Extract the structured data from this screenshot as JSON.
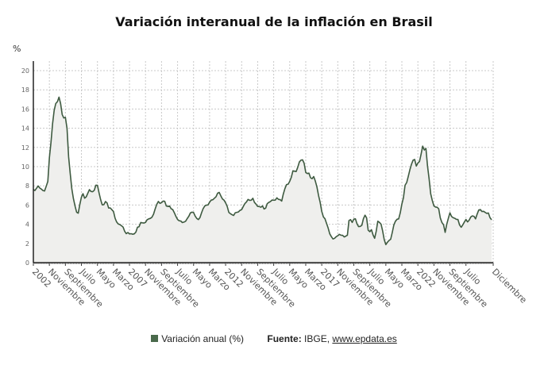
{
  "chart_data": {
    "type": "area",
    "title": "Variación interanual de la inflación en Brasil",
    "ylabel": "%",
    "xlabel": "",
    "ylim": [
      0,
      20
    ],
    "yticks": [
      0,
      2,
      4,
      6,
      8,
      10,
      12,
      14,
      16,
      18,
      20
    ],
    "grid": true,
    "legend_placement": "bottom",
    "x_range": [
      "2002-01",
      "2025-12"
    ],
    "xticks": [
      {
        "label": "2002",
        "date": "2002-01"
      },
      {
        "label": "Noviembre",
        "date": "2002-11"
      },
      {
        "label": "Septiembre",
        "date": "2003-09"
      },
      {
        "label": "Julio",
        "date": "2004-07"
      },
      {
        "label": "Mayo",
        "date": "2005-05"
      },
      {
        "label": "Marzo",
        "date": "2006-03"
      },
      {
        "label": "2007",
        "date": "2007-01"
      },
      {
        "label": "Noviembre",
        "date": "2007-11"
      },
      {
        "label": "Septiembre",
        "date": "2008-09"
      },
      {
        "label": "Julio",
        "date": "2009-07"
      },
      {
        "label": "Mayo",
        "date": "2010-05"
      },
      {
        "label": "Marzo",
        "date": "2011-03"
      },
      {
        "label": "2012",
        "date": "2012-01"
      },
      {
        "label": "Noviembre",
        "date": "2012-11"
      },
      {
        "label": "Septiembre",
        "date": "2013-09"
      },
      {
        "label": "Julio",
        "date": "2014-07"
      },
      {
        "label": "Mayo",
        "date": "2015-05"
      },
      {
        "label": "Marzo",
        "date": "2016-03"
      },
      {
        "label": "2017",
        "date": "2017-01"
      },
      {
        "label": "Noviembre",
        "date": "2017-11"
      },
      {
        "label": "Septiembre",
        "date": "2018-09"
      },
      {
        "label": "Julio",
        "date": "2019-07"
      },
      {
        "label": "Mayo",
        "date": "2020-05"
      },
      {
        "label": "Marzo",
        "date": "2021-03"
      },
      {
        "label": "2022",
        "date": "2022-01"
      },
      {
        "label": "Noviembre",
        "date": "2022-11"
      },
      {
        "label": "Septiembre",
        "date": "2023-09"
      },
      {
        "label": "Julio",
        "date": "2024-07"
      },
      {
        "label": "Diciembre",
        "date": "2025-12"
      }
    ],
    "series": [
      {
        "name": "Variación anual (%)",
        "color": "#3e5a40",
        "fill": "#efefed",
        "values_by_year": {
          "2002": [
            7.62,
            7.51,
            7.75,
            7.98,
            7.77,
            7.66,
            7.51,
            7.46,
            7.93,
            8.45,
            10.93,
            12.53
          ],
          "2003": [
            14.47,
            15.85,
            16.57,
            16.77,
            17.24,
            16.57,
            15.43,
            15.07,
            15.14,
            13.98,
            11.02,
            9.3
          ],
          "2004": [
            7.71,
            6.69,
            5.89,
            5.26,
            5.15,
            6.06,
            6.81,
            7.18,
            6.71,
            6.86,
            7.24,
            7.6
          ],
          "2005": [
            7.41,
            7.39,
            7.54,
            8.07,
            8.05,
            7.27,
            6.57,
            6.02,
            6.04,
            6.36,
            6.22,
            5.69
          ],
          "2006": [
            5.7,
            5.51,
            5.32,
            4.63,
            4.23,
            4.03,
            3.97,
            3.84,
            3.7,
            3.26,
            3.02,
            3.14
          ],
          "2007": [
            2.99,
            3.02,
            2.96,
            3.0,
            3.18,
            3.69,
            3.74,
            4.18,
            4.15,
            4.12,
            4.19,
            4.46
          ],
          "2008": [
            4.56,
            4.61,
            4.73,
            5.04,
            5.58,
            6.06,
            6.37,
            6.17,
            6.25,
            6.41,
            6.39,
            5.9
          ],
          "2009": [
            5.84,
            5.9,
            5.61,
            5.53,
            5.2,
            4.8,
            4.5,
            4.36,
            4.34,
            4.17,
            4.22,
            4.31
          ],
          "2010": [
            4.59,
            4.83,
            5.17,
            5.26,
            5.22,
            4.84,
            4.6,
            4.49,
            4.7,
            5.2,
            5.63,
            5.91
          ],
          "2011": [
            5.99,
            6.01,
            6.3,
            6.51,
            6.55,
            6.71,
            6.87,
            7.23,
            7.31,
            6.97,
            6.64,
            6.5
          ],
          "2012": [
            6.22,
            5.85,
            5.24,
            5.1,
            4.99,
            4.92,
            5.2,
            5.24,
            5.28,
            5.45,
            5.53,
            5.84
          ],
          "2013": [
            6.15,
            6.31,
            6.59,
            6.49,
            6.5,
            6.7,
            6.27,
            6.09,
            5.86,
            5.84,
            5.77,
            5.91
          ],
          "2014": [
            5.59,
            5.68,
            6.15,
            6.28,
            6.37,
            6.52,
            6.5,
            6.51,
            6.75,
            6.59,
            6.56,
            6.41
          ],
          "2015": [
            7.14,
            7.7,
            8.13,
            8.17,
            8.47,
            8.89,
            9.56,
            9.53,
            9.49,
            9.93,
            10.48,
            10.67
          ],
          "2016": [
            10.71,
            10.36,
            9.39,
            9.28,
            9.32,
            8.84,
            8.74,
            8.97,
            8.48,
            7.87,
            6.99,
            6.29
          ],
          "2017": [
            5.35,
            4.76,
            4.57,
            4.08,
            3.6,
            3.0,
            2.71,
            2.46,
            2.54,
            2.7,
            2.8,
            2.95
          ],
          "2018": [
            2.86,
            2.84,
            2.68,
            2.76,
            2.86,
            4.39,
            4.48,
            4.19,
            4.53,
            4.56,
            4.05,
            3.75
          ],
          "2019": [
            3.78,
            3.89,
            4.58,
            4.94,
            4.66,
            3.37,
            3.22,
            3.43,
            2.89,
            2.54,
            3.27,
            4.31
          ],
          "2020": [
            4.19,
            4.01,
            3.3,
            2.4,
            1.88,
            2.13,
            2.31,
            2.44,
            3.14,
            3.92,
            4.31,
            4.52
          ],
          "2021": [
            4.56,
            5.2,
            6.1,
            6.76,
            8.06,
            8.35,
            8.99,
            9.68,
            10.25,
            10.67,
            10.74,
            10.06
          ],
          "2022": [
            10.38,
            10.54,
            11.3,
            12.13,
            11.73,
            11.89,
            10.07,
            8.73,
            7.17,
            6.47,
            5.9,
            5.79
          ],
          "2023": [
            5.77,
            5.6,
            4.65,
            4.18,
            3.94,
            3.16,
            3.99,
            4.61,
            5.19,
            4.82,
            4.68,
            4.62
          ],
          "2024": [
            4.51,
            4.5,
            3.93,
            3.69,
            3.93,
            4.23,
            4.5,
            4.24,
            4.42,
            4.76,
            4.87,
            4.83
          ],
          "2025": [
            4.56,
            5.06,
            5.48,
            5.53,
            5.32,
            5.35,
            5.23,
            5.13,
            5.17,
            4.68,
            4.46
          ]
        }
      }
    ]
  },
  "legend": {
    "label": "Variación anual (%)",
    "color": "#4a6a4c"
  },
  "source": {
    "prefix": "Fuente:",
    "text": "IBGE,",
    "link": "www.epdata.es"
  }
}
